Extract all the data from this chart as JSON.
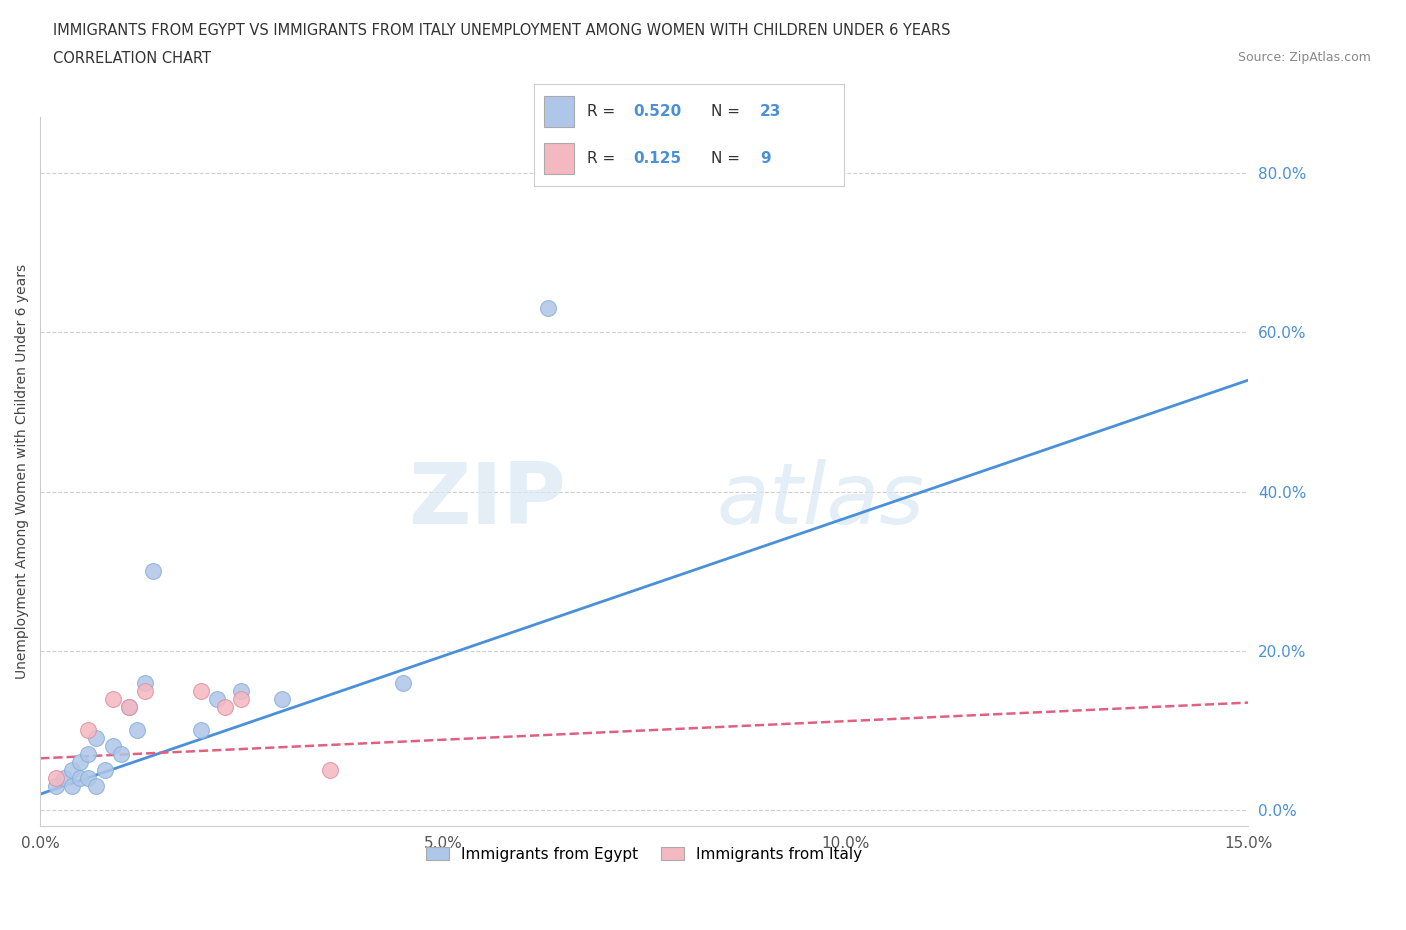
{
  "title_line1": "IMMIGRANTS FROM EGYPT VS IMMIGRANTS FROM ITALY UNEMPLOYMENT AMONG WOMEN WITH CHILDREN UNDER 6 YEARS",
  "title_line2": "CORRELATION CHART",
  "source": "Source: ZipAtlas.com",
  "ylabel": "Unemployment Among Women with Children Under 6 years",
  "xlabel": "",
  "xlim": [
    0.0,
    0.15
  ],
  "ylim": [
    -0.02,
    0.87
  ],
  "yticks": [
    0.0,
    0.2,
    0.4,
    0.6,
    0.8
  ],
  "ytick_labels": [
    "0.0%",
    "20.0%",
    "40.0%",
    "60.0%",
    "80.0%"
  ],
  "xticks": [
    0.0,
    0.05,
    0.1,
    0.15
  ],
  "xtick_labels": [
    "0.0%",
    "5.0%",
    "10.0%",
    "15.0%"
  ],
  "egypt_x": [
    0.002,
    0.003,
    0.004,
    0.004,
    0.005,
    0.005,
    0.006,
    0.006,
    0.007,
    0.007,
    0.008,
    0.009,
    0.01,
    0.011,
    0.012,
    0.013,
    0.014,
    0.02,
    0.022,
    0.025,
    0.03,
    0.045,
    0.063
  ],
  "egypt_y": [
    0.03,
    0.04,
    0.03,
    0.05,
    0.04,
    0.06,
    0.04,
    0.07,
    0.03,
    0.09,
    0.05,
    0.08,
    0.07,
    0.13,
    0.1,
    0.16,
    0.3,
    0.1,
    0.14,
    0.15,
    0.14,
    0.16,
    0.63
  ],
  "italy_x": [
    0.002,
    0.006,
    0.009,
    0.011,
    0.013,
    0.02,
    0.023,
    0.025,
    0.036
  ],
  "italy_y": [
    0.04,
    0.1,
    0.14,
    0.13,
    0.15,
    0.15,
    0.13,
    0.14,
    0.05
  ],
  "egypt_line_x0": 0.0,
  "egypt_line_y0": 0.02,
  "egypt_line_x1": 0.15,
  "egypt_line_y1": 0.54,
  "italy_line_x0": 0.0,
  "italy_line_y0": 0.065,
  "italy_line_x1": 0.15,
  "italy_line_y1": 0.135,
  "egypt_color": "#aec6e8",
  "italy_color": "#f4b8c1",
  "egypt_line_color": "#4a90d9",
  "italy_line_color": "#e06080",
  "R_egypt": 0.52,
  "N_egypt": 23,
  "R_italy": 0.125,
  "N_italy": 9,
  "legend1_label": "Immigrants from Egypt",
  "legend2_label": "Immigrants from Italy",
  "watermark_zip": "ZIP",
  "watermark_atlas": "atlas",
  "background_color": "#ffffff",
  "grid_color": "#d0d0d0"
}
